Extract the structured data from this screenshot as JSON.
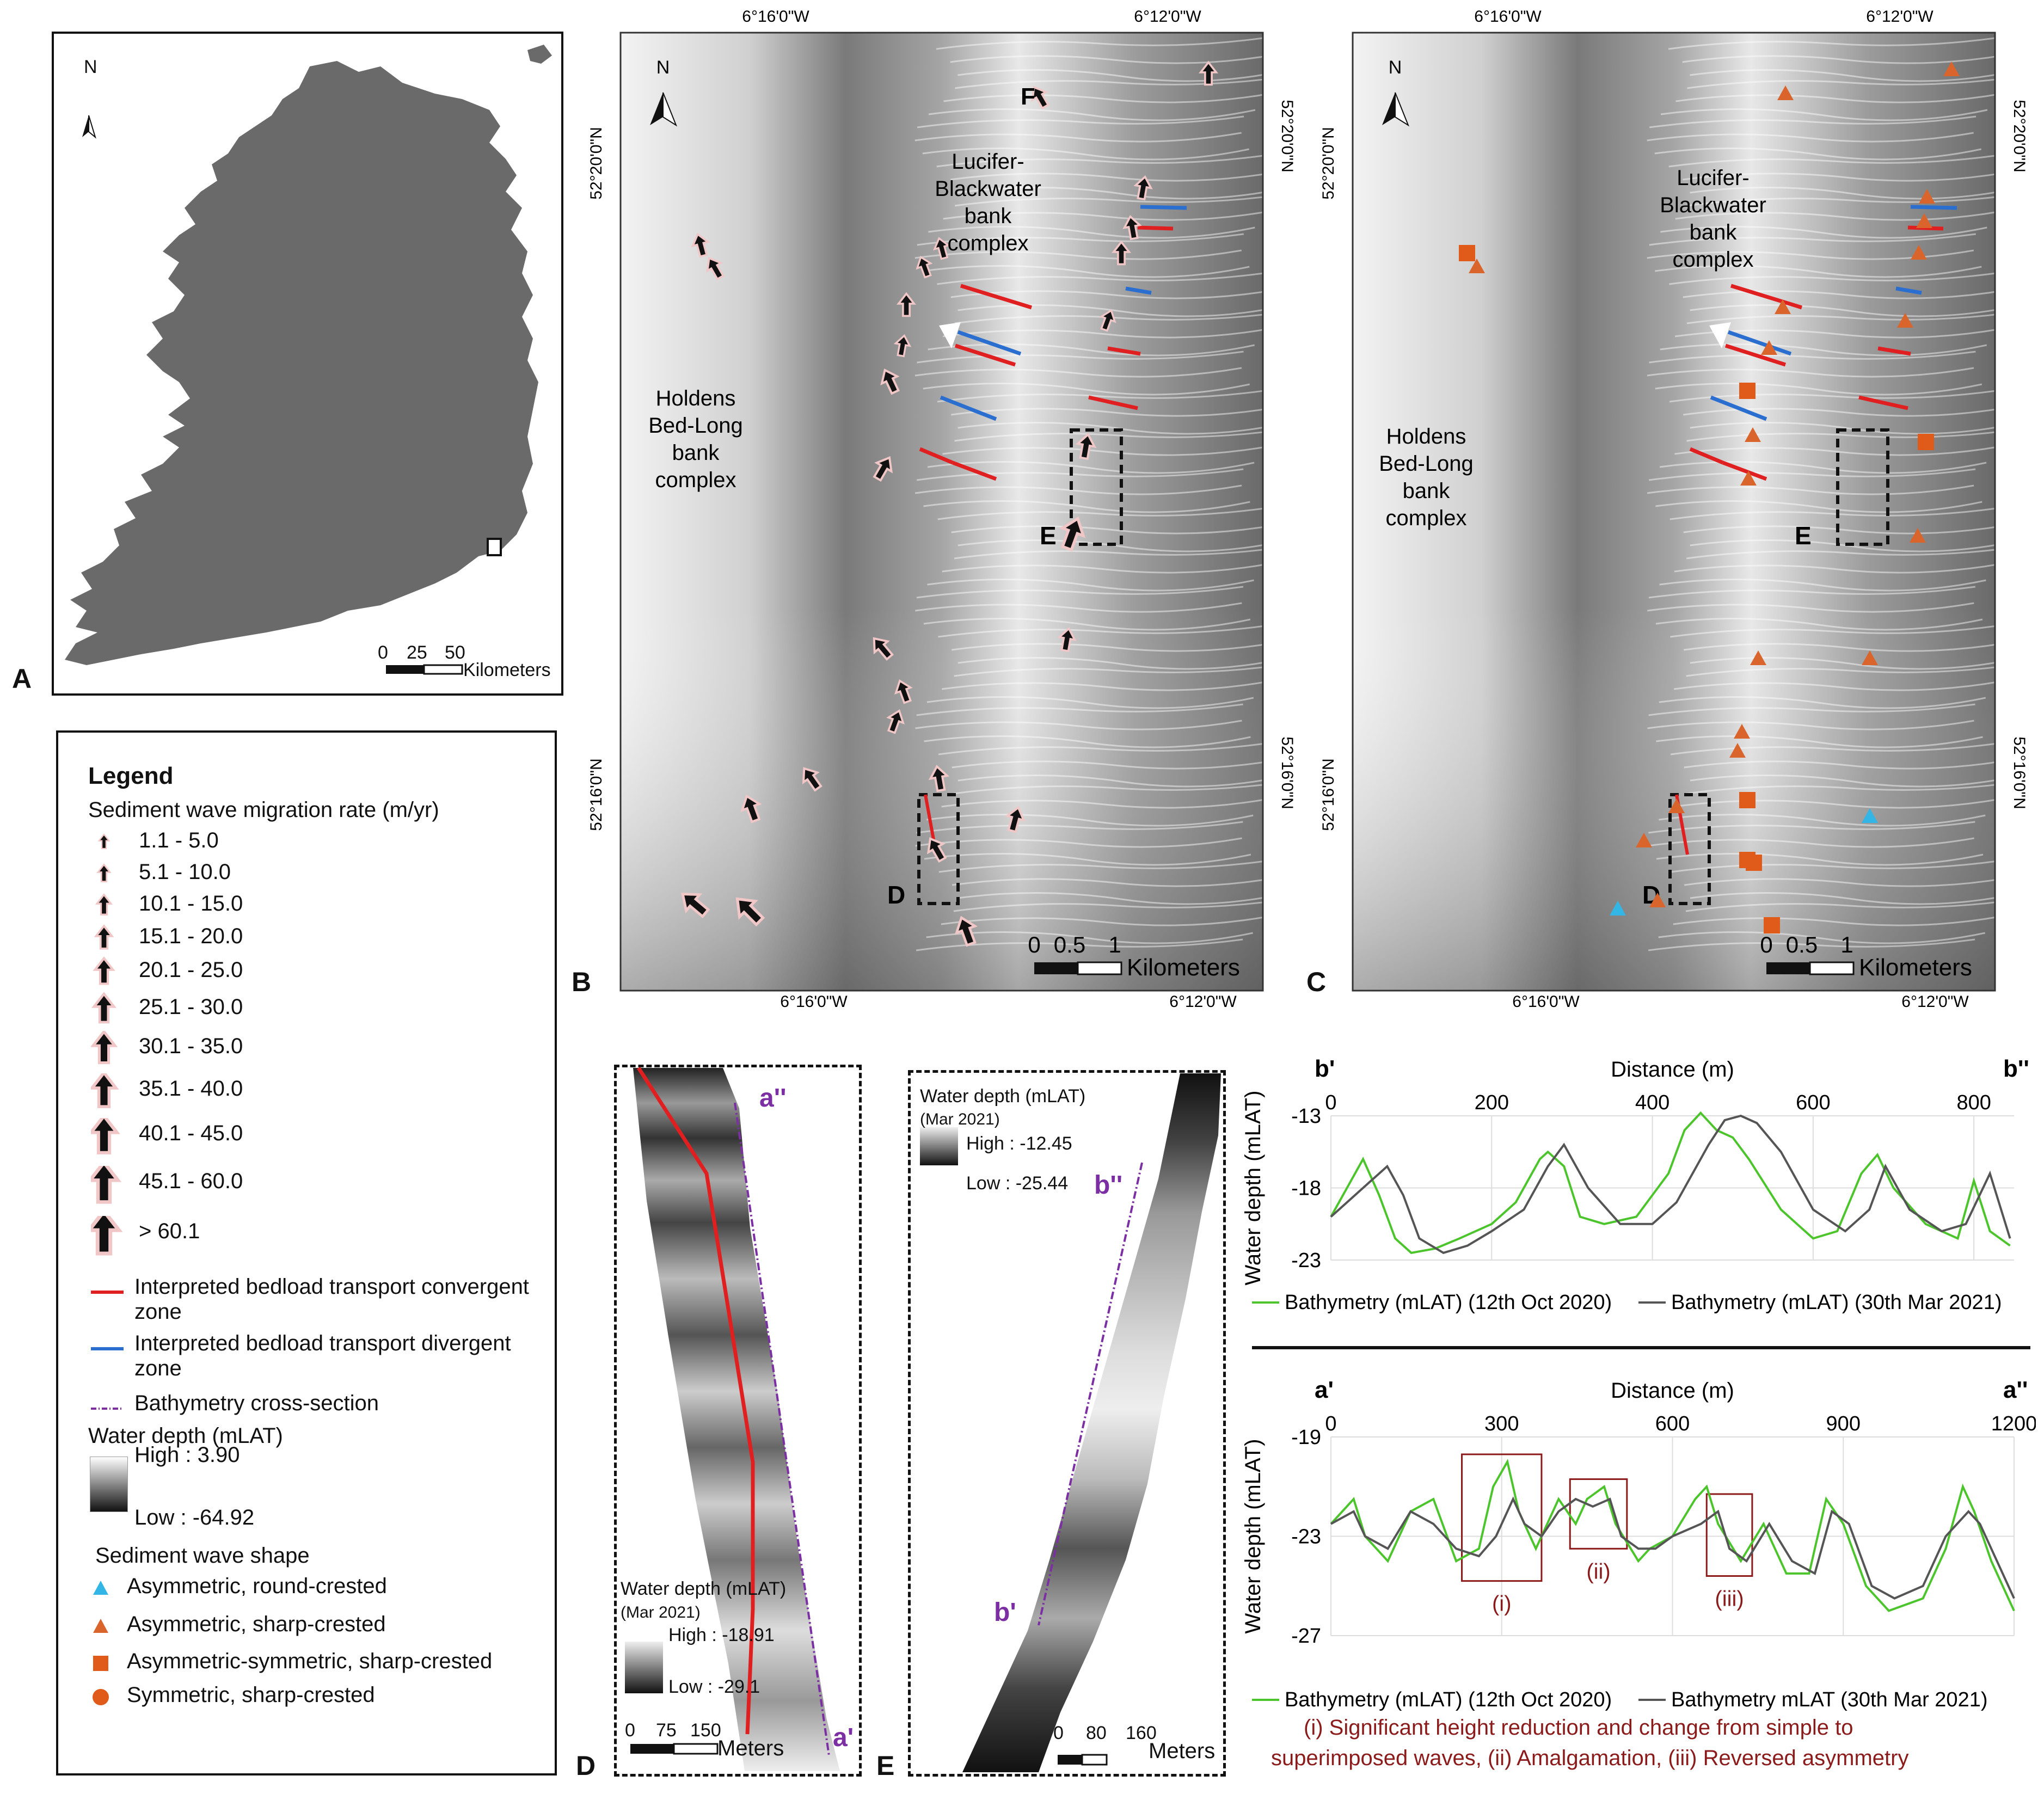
{
  "panels": {
    "A": {
      "label": "A",
      "north": "N",
      "scale_ticks": [
        "0",
        "25",
        "50"
      ],
      "scale_unit": "Kilometers"
    },
    "B": {
      "label": "B",
      "north": "N",
      "top_coords": [
        "6°16'0\"W",
        "6°12'0\"W"
      ],
      "bottom_coords": [
        "6°16'0\"W",
        "6°12'0\"W"
      ],
      "left_coords": [
        "52°20'0\"N",
        "52°16'0\"N"
      ],
      "right_coords": [
        "52°20'0\"N",
        "52°16'0\"N"
      ],
      "bank1": [
        "Holdens",
        "Bed-Long",
        "bank",
        "complex"
      ],
      "bank2": [
        "Lucifer-",
        "Blackwater",
        "bank",
        "complex"
      ],
      "box_labels": {
        "D": "D",
        "E": "E",
        "F": "F"
      },
      "scale_ticks": [
        "0",
        "0.5",
        "1"
      ],
      "scale_unit": "Kilometers"
    },
    "C": {
      "label": "C",
      "north": "N",
      "top_coords": [
        "6°16'0\"W",
        "6°12'0\"W"
      ],
      "bottom_coords": [
        "6°16'0\"W",
        "6°12'0\"W"
      ],
      "left_coords": [
        "52°20'0\"N",
        "52°16'0\"N"
      ],
      "right_coords": [
        "52°20'0\"N",
        "52°16'0\"N"
      ],
      "bank1": [
        "Holdens",
        "Bed-Long",
        "bank",
        "complex"
      ],
      "bank2": [
        "Lucifer-",
        "Blackwater",
        "bank",
        "complex"
      ],
      "box_labels": {
        "D": "D",
        "E": "E"
      },
      "scale_ticks": [
        "0",
        "0.5",
        "1"
      ],
      "scale_unit": "Kilometers"
    },
    "D": {
      "label": "D",
      "depth_title": [
        "Water depth (mLAT)",
        "(Mar 2021)"
      ],
      "high": "High : -18.91",
      "low": "Low : -29.1",
      "section_end": "a''",
      "section_start": "a'",
      "scale_ticks": [
        "0",
        "75",
        "150"
      ],
      "scale_unit": "Meters"
    },
    "E": {
      "label": "E",
      "depth_title": [
        "Water depth (mLAT)",
        "(Mar 2021)"
      ],
      "high": "High : -12.45",
      "low": "Low : -25.44",
      "section_end": "b''",
      "section_start": "b'",
      "scale_ticks": [
        "0",
        "80",
        "160"
      ],
      "scale_unit": "Meters"
    }
  },
  "legend": {
    "title": "Legend",
    "migration_title": "Sediment wave migration rate (m/yr)",
    "migration_classes": [
      "1.1 - 5.0",
      "5.1 - 10.0",
      "10.1 - 15.0",
      "15.1 - 20.0",
      "20.1 - 25.0",
      "25.1 - 30.0",
      "30.1 - 35.0",
      "35.1 - 40.0",
      "40.1 - 45.0",
      "45.1 - 60.0",
      "> 60.1"
    ],
    "convergent": [
      "Interpreted bedload transport convergent",
      "zone"
    ],
    "divergent": [
      "Interpreted bedload transport divergent",
      "zone"
    ],
    "cross_section": "Bathymetry cross-section",
    "depth_title": "Water depth (mLAT)",
    "depth_high": "High : 3.90",
    "depth_low": "Low : -64.92",
    "shape_title": "Sediment wave shape",
    "shapes": [
      "Asymmetric, round-crested",
      "Asymmetric, sharp-crested",
      "Asymmetric-symmetric, sharp-crested",
      "Symmetric, sharp-crested"
    ]
  },
  "colors": {
    "convergent": "#e02020",
    "divergent": "#2a6fd0",
    "section": "#7b2fa3",
    "oct2020": "#4cc52c",
    "mar2021": "#555555",
    "triangle": "#d9652c",
    "square": "#e05a1a",
    "round": "#33b5e5",
    "annot": "#8b1a1a"
  },
  "chart_data": [
    {
      "type": "line",
      "start_label": "b'",
      "end_label": "b''",
      "xlabel": "Distance (m)",
      "ylabel": "Water depth (mLAT)",
      "xlim": [
        0,
        850
      ],
      "ylim": [
        -23,
        -13
      ],
      "x_ticks": [
        "0",
        "200",
        "400",
        "600",
        "800"
      ],
      "y_ticks": [
        "-13",
        "-18",
        "-23"
      ],
      "series": [
        {
          "name": "Bathymetry (mLAT) (12th Oct 2020)",
          "x": [
            0,
            25,
            40,
            60,
            80,
            100,
            130,
            160,
            200,
            230,
            260,
            270,
            290,
            310,
            340,
            380,
            420,
            440,
            460,
            480,
            500,
            520,
            560,
            600,
            630,
            660,
            680,
            700,
            740,
            780,
            800,
            820,
            845
          ],
          "y": [
            -20,
            -17.5,
            -16,
            -18.5,
            -21.5,
            -22.5,
            -22.2,
            -21.5,
            -20.5,
            -19,
            -16,
            -15.5,
            -16.5,
            -20,
            -20.5,
            -20,
            -17,
            -14,
            -12.8,
            -14,
            -14.5,
            -16,
            -19.5,
            -21.5,
            -21,
            -17,
            -15.7,
            -18,
            -20.5,
            -21.5,
            -17.5,
            -21,
            -22
          ]
        },
        {
          "name": "Bathymetry (mLAT) (30th Mar 2021)",
          "x": [
            0,
            30,
            50,
            70,
            90,
            110,
            140,
            170,
            200,
            240,
            270,
            290,
            320,
            360,
            400,
            430,
            470,
            490,
            510,
            530,
            560,
            600,
            640,
            670,
            690,
            720,
            760,
            790,
            820,
            845
          ],
          "y": [
            -20,
            -18.5,
            -17.5,
            -16.5,
            -18.5,
            -21.5,
            -22.5,
            -22,
            -21,
            -19.5,
            -16.5,
            -15,
            -18,
            -20.5,
            -20.5,
            -19,
            -15,
            -13.3,
            -13,
            -13.5,
            -15.5,
            -19.5,
            -21,
            -19.5,
            -16.5,
            -19.5,
            -21,
            -20.5,
            -17,
            -21.5
          ]
        }
      ]
    },
    {
      "type": "line",
      "start_label": "a'",
      "end_label": "a''",
      "xlabel": "Distance (m)",
      "ylabel": "Water depth (mLAT)",
      "xlim": [
        0,
        1200
      ],
      "ylim": [
        -27,
        -19
      ],
      "x_ticks": [
        "0",
        "300",
        "600",
        "900",
        "1200"
      ],
      "y_ticks": [
        "-19",
        "-23",
        "-27"
      ],
      "series": [
        {
          "name": "Bathymetry (mLAT) (12th Oct 2020)",
          "x": [
            0,
            40,
            60,
            100,
            140,
            180,
            220,
            260,
            285,
            310,
            330,
            360,
            400,
            430,
            450,
            480,
            500,
            540,
            560,
            600,
            640,
            660,
            680,
            720,
            760,
            800,
            840,
            870,
            900,
            940,
            980,
            1040,
            1080,
            1110,
            1130,
            1160,
            1190,
            1200
          ],
          "y": [
            -22.5,
            -21.5,
            -23,
            -24,
            -22,
            -21.5,
            -24,
            -23.5,
            -21,
            -20,
            -22,
            -23.5,
            -21.5,
            -22.5,
            -21.5,
            -21,
            -22.5,
            -24,
            -23.5,
            -23,
            -21.5,
            -21,
            -22.5,
            -24,
            -22.5,
            -24.5,
            -24.5,
            -21.5,
            -22.5,
            -25,
            -26,
            -25.5,
            -23.5,
            -21,
            -22,
            -24,
            -25.5,
            -26
          ]
        },
        {
          "name": "Bathymetry mLAT (30th Mar 2021)",
          "x": [
            0,
            40,
            60,
            100,
            140,
            180,
            220,
            260,
            290,
            320,
            340,
            370,
            400,
            430,
            460,
            490,
            510,
            540,
            570,
            600,
            650,
            680,
            700,
            730,
            770,
            810,
            850,
            880,
            910,
            950,
            990,
            1040,
            1080,
            1120,
            1140,
            1170,
            1200
          ],
          "y": [
            -22.5,
            -22,
            -23,
            -23.5,
            -22,
            -22.5,
            -23.5,
            -23.8,
            -23,
            -21.5,
            -22.5,
            -23,
            -22,
            -21.5,
            -21.8,
            -21.5,
            -23,
            -23.5,
            -23.5,
            -23,
            -22.5,
            -22,
            -23.5,
            -24,
            -22.5,
            -24,
            -24.5,
            -22,
            -22.5,
            -25,
            -25.5,
            -25,
            -23,
            -22,
            -22.5,
            -24,
            -25.5
          ]
        }
      ],
      "annotations": [
        "(i)",
        "(ii)",
        "(iii)"
      ]
    }
  ],
  "caption": [
    "(i)  Significant height reduction and change from simple to",
    "superimposed waves, (ii) Amalgamation,  (iii) Reversed asymmetry"
  ]
}
